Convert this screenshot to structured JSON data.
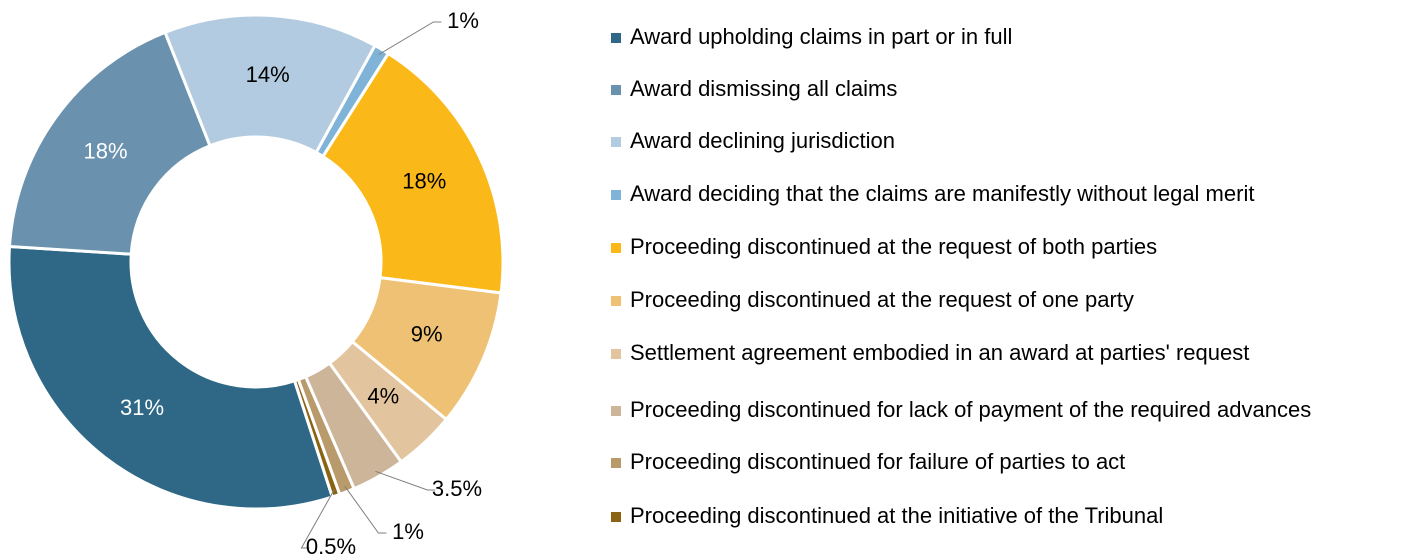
{
  "chart_data": {
    "type": "donut",
    "categories": [
      "Award upholding claims in part or in full",
      "Award dismissing all claims",
      "Award declining jurisdiction",
      "Award deciding that the claims are manifestly without legal merit",
      "Proceeding discontinued at the request of both parties",
      "Proceeding discontinued at the request of one party",
      "Settlement agreement embodied in an award at parties' request",
      "Proceeding discontinued for lack of payment of the required advances",
      "Proceeding discontinued for failure of parties to act",
      "Proceeding discontinued at the initiative of the Tribunal"
    ],
    "values": [
      31,
      18,
      14,
      1,
      18,
      9,
      4,
      3.5,
      1,
      0.5
    ],
    "value_labels": [
      "31%",
      "18%",
      "14%",
      "1%",
      "18%",
      "9%",
      "4%",
      "3.5%",
      "1%",
      "0.5%"
    ],
    "colors": [
      "#2e6886",
      "#6a91ad",
      "#b2cbe0",
      "#7fb4d8",
      "#fbb819",
      "#eec174",
      "#e2c49e",
      "#cdb59a",
      "#b99a6b",
      "#8b6413"
    ],
    "legend": "right"
  }
}
